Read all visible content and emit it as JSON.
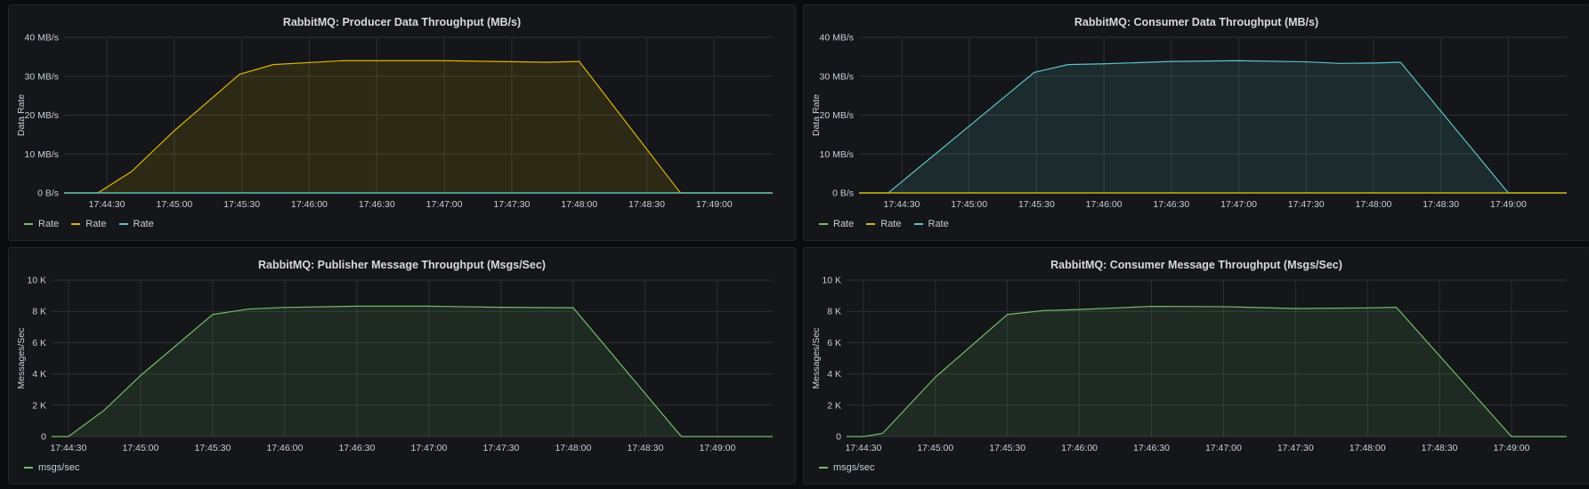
{
  "colors": {
    "green": "#73bf69",
    "yellow": "#e0b400",
    "teal": "#5ec3c6",
    "grid": "#2c3036",
    "text": "#c7d0d9"
  },
  "chart_data": [
    {
      "id": "producer",
      "type": "area",
      "title": "RabbitMQ: Producer Data Throughput (MB/s)",
      "ylabel": "Data Rate",
      "yunit": "MB/s",
      "ylim": [
        0,
        40
      ],
      "yticks": [
        0,
        10,
        20,
        30,
        40
      ],
      "ytick_labels": [
        "0 B/s",
        "10 MB/s",
        "20 MB/s",
        "30 MB/s",
        "40 MB/s"
      ],
      "xlim": [
        "17:44:11",
        "17:49:26"
      ],
      "xticks": [
        "17:44:30",
        "17:45:00",
        "17:45:30",
        "17:46:00",
        "17:46:30",
        "17:47:00",
        "17:47:30",
        "17:48:00",
        "17:48:30",
        "17:49:00"
      ],
      "grid": true,
      "legend_position": "bottom-left",
      "series": [
        {
          "name": "Rate",
          "color": "green",
          "fill": false,
          "points": [
            [
              "17:44:11",
              0
            ],
            [
              "17:49:26",
              0
            ]
          ]
        },
        {
          "name": "Rate",
          "color": "yellow",
          "fill": true,
          "points": [
            [
              "17:44:11",
              0
            ],
            [
              "17:44:26",
              0
            ],
            [
              "17:44:41",
              5.5
            ],
            [
              "17:45:00",
              16
            ],
            [
              "17:45:29",
              30.5
            ],
            [
              "17:45:44",
              33
            ],
            [
              "17:46:15",
              34
            ],
            [
              "17:47:00",
              34
            ],
            [
              "17:47:45",
              33.6
            ],
            [
              "17:48:00",
              33.8
            ],
            [
              "17:48:45",
              0
            ],
            [
              "17:49:26",
              0
            ]
          ]
        },
        {
          "name": "Rate",
          "color": "teal",
          "fill": false,
          "points": [
            [
              "17:44:11",
              0
            ],
            [
              "17:49:26",
              0
            ]
          ]
        }
      ]
    },
    {
      "id": "consumer",
      "type": "area",
      "title": "RabbitMQ: Consumer Data Throughput (MB/s)",
      "ylabel": "Data Rate",
      "yunit": "MB/s",
      "ylim": [
        0,
        40
      ],
      "yticks": [
        0,
        10,
        20,
        30,
        40
      ],
      "ytick_labels": [
        "0 B/s",
        "10 MB/s",
        "20 MB/s",
        "30 MB/s",
        "40 MB/s"
      ],
      "xlim": [
        "17:44:11",
        "17:49:26"
      ],
      "xticks": [
        "17:44:30",
        "17:45:00",
        "17:45:30",
        "17:46:00",
        "17:46:30",
        "17:47:00",
        "17:47:30",
        "17:48:00",
        "17:48:30",
        "17:49:00"
      ],
      "grid": true,
      "legend_position": "bottom-left",
      "series": [
        {
          "name": "Rate",
          "color": "green",
          "fill": false,
          "points": [
            [
              "17:44:11",
              0
            ],
            [
              "17:49:26",
              0
            ]
          ]
        },
        {
          "name": "Rate",
          "color": "yellow",
          "fill": false,
          "points": [
            [
              "17:44:11",
              0
            ],
            [
              "17:49:26",
              0
            ]
          ]
        },
        {
          "name": "Rate",
          "color": "teal",
          "fill": true,
          "points": [
            [
              "17:44:11",
              0
            ],
            [
              "17:44:24",
              0
            ],
            [
              "17:45:29",
              31
            ],
            [
              "17:45:44",
              33
            ],
            [
              "17:46:00",
              33.2
            ],
            [
              "17:46:30",
              33.8
            ],
            [
              "17:47:00",
              34
            ],
            [
              "17:47:30",
              33.7
            ],
            [
              "17:47:45",
              33.3
            ],
            [
              "17:48:00",
              33.4
            ],
            [
              "17:48:12",
              33.6
            ],
            [
              "17:49:00",
              0
            ],
            [
              "17:49:26",
              0
            ]
          ]
        }
      ]
    },
    {
      "id": "publisher",
      "type": "area",
      "title": "RabbitMQ: Publisher Message Throughput (Msgs/Sec)",
      "ylabel": "Messages/Sec",
      "yunit": "msgs/sec",
      "ylim": [
        0,
        10000
      ],
      "yticks": [
        0,
        2000,
        4000,
        6000,
        8000,
        10000
      ],
      "ytick_labels": [
        "0",
        "2 K",
        "4 K",
        "6 K",
        "8 K",
        "10 K"
      ],
      "xlim": [
        "17:44:23",
        "17:49:23"
      ],
      "xticks": [
        "17:44:30",
        "17:45:00",
        "17:45:30",
        "17:46:00",
        "17:46:30",
        "17:47:00",
        "17:47:30",
        "17:48:00",
        "17:48:30",
        "17:49:00"
      ],
      "grid": true,
      "legend_position": "bottom-left",
      "series": [
        {
          "name": "msgs/sec",
          "color": "green",
          "fill": true,
          "points": [
            [
              "17:44:23",
              0
            ],
            [
              "17:44:30",
              0
            ],
            [
              "17:44:45",
              1700
            ],
            [
              "17:45:00",
              3900
            ],
            [
              "17:45:30",
              7800
            ],
            [
              "17:45:45",
              8150
            ],
            [
              "17:46:00",
              8250
            ],
            [
              "17:46:30",
              8330
            ],
            [
              "17:47:00",
              8330
            ],
            [
              "17:47:30",
              8260
            ],
            [
              "17:48:00",
              8230
            ],
            [
              "17:48:45",
              0
            ],
            [
              "17:49:23",
              0
            ]
          ]
        }
      ]
    },
    {
      "id": "consumer-msgs",
      "type": "area",
      "title": "RabbitMQ: Consumer Message Throughput (Msgs/Sec)",
      "ylabel": "Messages/Sec",
      "yunit": "msgs/sec",
      "ylim": [
        0,
        10000
      ],
      "yticks": [
        0,
        2000,
        4000,
        6000,
        8000,
        10000
      ],
      "ytick_labels": [
        "0",
        "2 K",
        "4 K",
        "6 K",
        "8 K",
        "10 K"
      ],
      "xlim": [
        "17:44:23",
        "17:49:23"
      ],
      "xticks": [
        "17:44:30",
        "17:45:00",
        "17:45:30",
        "17:46:00",
        "17:46:30",
        "17:47:00",
        "17:47:30",
        "17:48:00",
        "17:48:30",
        "17:49:00"
      ],
      "grid": true,
      "legend_position": "bottom-left",
      "series": [
        {
          "name": "msgs/sec",
          "color": "green",
          "fill": true,
          "points": [
            [
              "17:44:23",
              0
            ],
            [
              "17:44:30",
              0
            ],
            [
              "17:44:38",
              200
            ],
            [
              "17:45:00",
              3800
            ],
            [
              "17:45:30",
              7800
            ],
            [
              "17:45:45",
              8050
            ],
            [
              "17:46:00",
              8120
            ],
            [
              "17:46:30",
              8320
            ],
            [
              "17:47:00",
              8300
            ],
            [
              "17:47:30",
              8180
            ],
            [
              "17:48:00",
              8220
            ],
            [
              "17:48:12",
              8260
            ],
            [
              "17:49:00",
              0
            ],
            [
              "17:49:23",
              0
            ]
          ]
        }
      ]
    }
  ]
}
